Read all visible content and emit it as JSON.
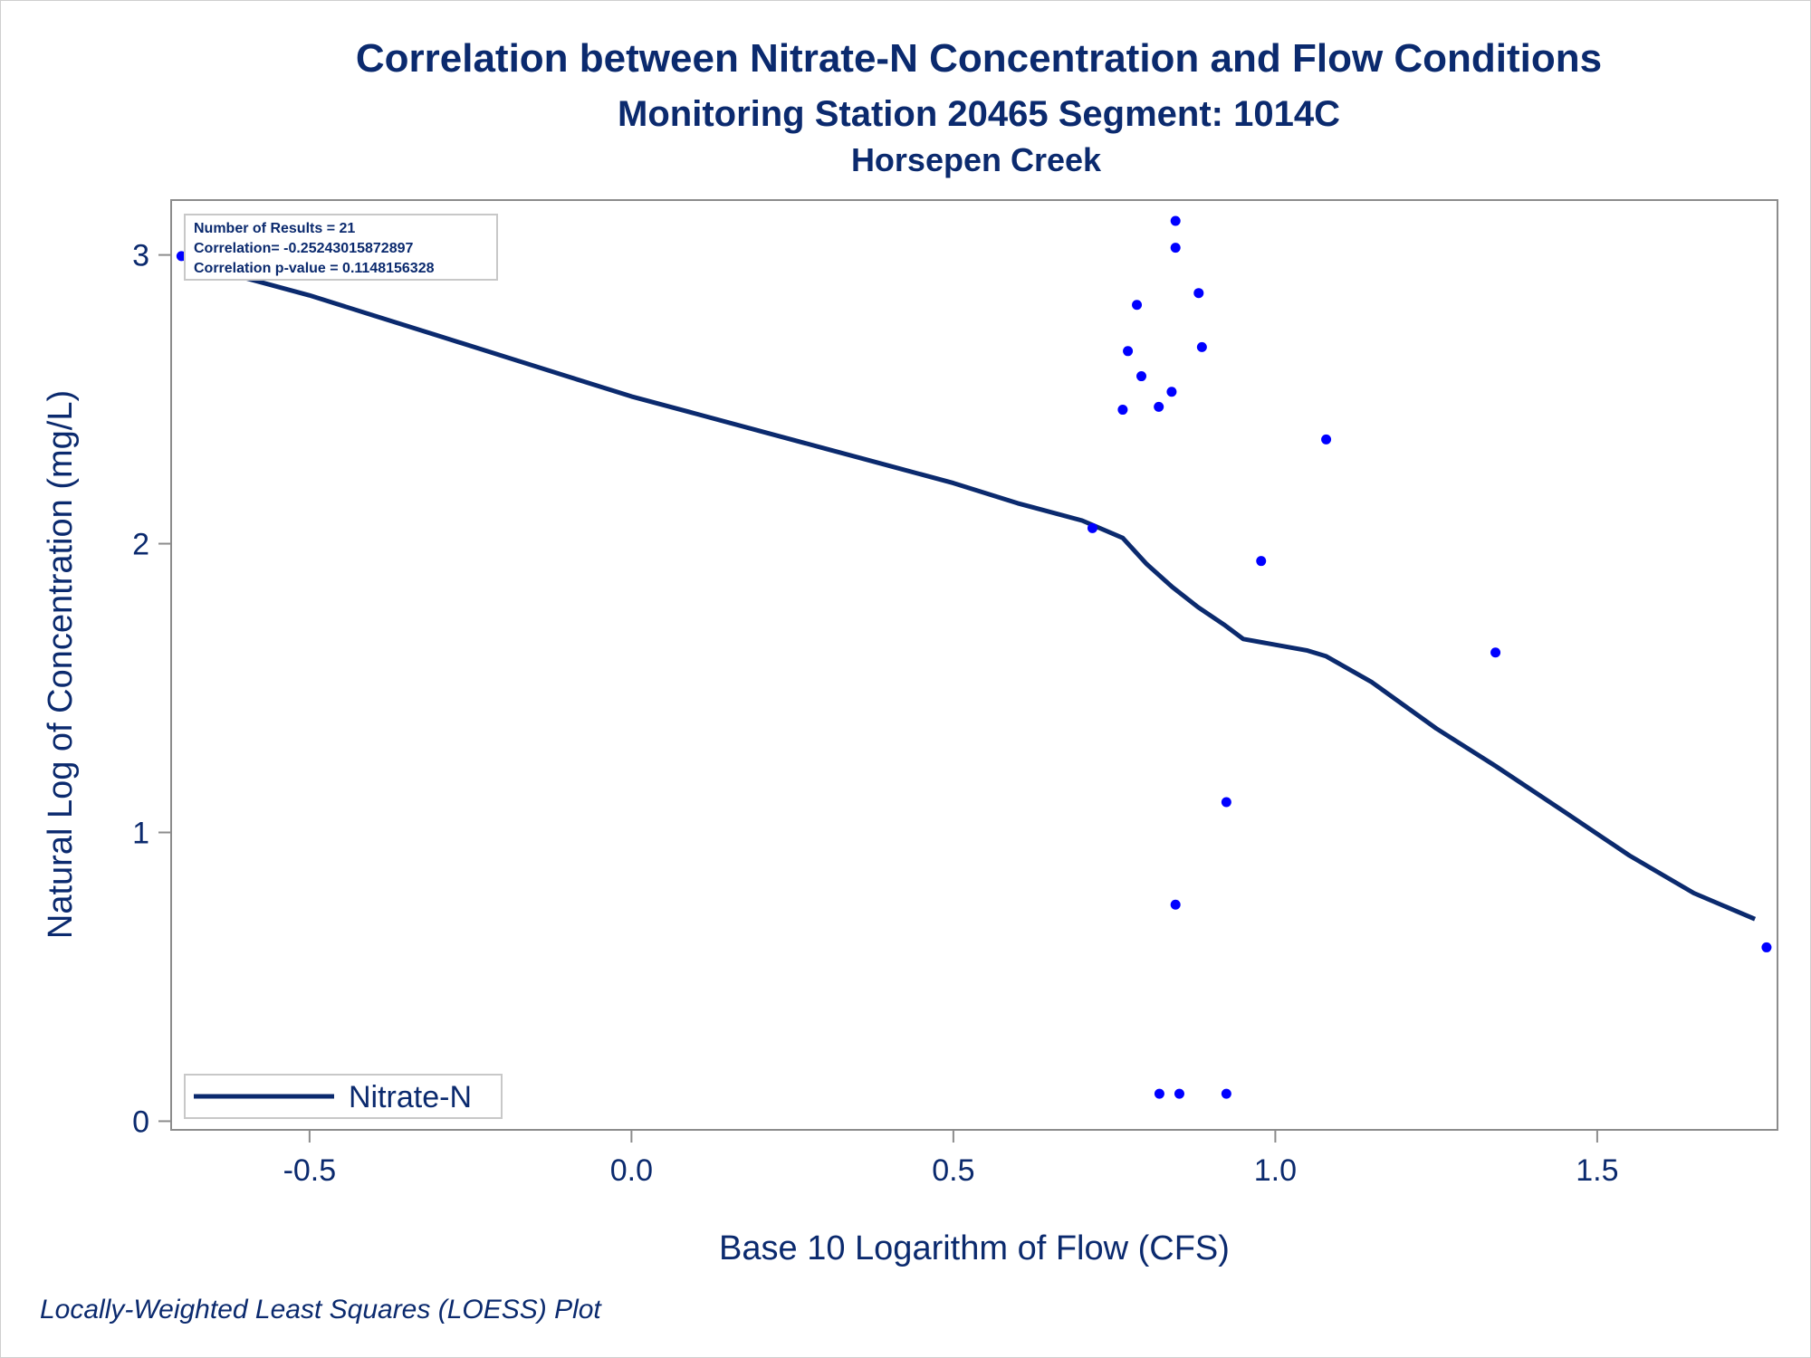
{
  "chart_data": {
    "type": "scatter",
    "title": "Correlation between Nitrate-N Concentration and Flow Conditions",
    "subtitle": "Monitoring Station 20465 Segment: 1014C",
    "subtitle2": "Horsepen Creek",
    "xlabel": "Base 10 Logarithm of Flow (CFS)",
    "ylabel": "Natural Log of Concentration (mg/L)",
    "footnote": "Locally-Weighted Least Squares (LOESS) Plot",
    "xlim": [
      -0.715,
      1.78
    ],
    "ylim": [
      -0.03,
      3.19
    ],
    "x_ticks": [
      -0.5,
      0.0,
      0.5,
      1.0,
      1.5
    ],
    "x_tick_labels": [
      "-0.5",
      "0.0",
      "0.5",
      "1.0",
      "1.5"
    ],
    "y_ticks": [
      0,
      1,
      2,
      3
    ],
    "y_tick_labels": [
      "0",
      "1",
      "2",
      "3"
    ],
    "grid": false,
    "legend": {
      "position": "bottom-left",
      "entries": [
        "Nitrate-N"
      ]
    },
    "stats_box": {
      "position": "top-left",
      "lines": [
        "Number of Results = 21",
        "Correlation= -0.25243015872897",
        "Correlation p-value = 0.1148156328"
      ]
    },
    "colors": {
      "points": "#0000ff",
      "line": "#0b2a6e",
      "text": "#0b2a6e",
      "axis": "#8c8c8c"
    },
    "points": [
      {
        "x": -0.699,
        "y": 2.996
      },
      {
        "x": 0.716,
        "y": 2.054
      },
      {
        "x": 0.763,
        "y": 2.464
      },
      {
        "x": 0.771,
        "y": 2.667
      },
      {
        "x": 0.785,
        "y": 2.827
      },
      {
        "x": 0.792,
        "y": 2.58
      },
      {
        "x": 0.819,
        "y": 2.474
      },
      {
        "x": 0.82,
        "y": 0.095
      },
      {
        "x": 0.839,
        "y": 2.526
      },
      {
        "x": 0.845,
        "y": 3.118
      },
      {
        "x": 0.845,
        "y": 3.025
      },
      {
        "x": 0.845,
        "y": 0.75
      },
      {
        "x": 0.851,
        "y": 0.095
      },
      {
        "x": 0.881,
        "y": 2.868
      },
      {
        "x": 0.886,
        "y": 2.681
      },
      {
        "x": 0.924,
        "y": 1.105
      },
      {
        "x": 0.924,
        "y": 0.095
      },
      {
        "x": 0.978,
        "y": 1.94
      },
      {
        "x": 1.079,
        "y": 2.361
      },
      {
        "x": 1.342,
        "y": 1.623
      },
      {
        "x": 1.763,
        "y": 0.602
      }
    ],
    "series": [
      {
        "name": "Nitrate-N",
        "type": "line",
        "x": [
          -0.699,
          -0.6,
          -0.5,
          -0.4,
          -0.3,
          -0.2,
          -0.1,
          0.0,
          0.1,
          0.2,
          0.3,
          0.4,
          0.5,
          0.6,
          0.7,
          0.763,
          0.8,
          0.84,
          0.88,
          0.92,
          0.95,
          1.0,
          1.05,
          1.079,
          1.15,
          1.25,
          1.342,
          1.45,
          1.55,
          1.65,
          1.745
        ],
        "y": [
          2.99,
          2.92,
          2.86,
          2.79,
          2.72,
          2.65,
          2.58,
          2.51,
          2.45,
          2.39,
          2.33,
          2.27,
          2.21,
          2.14,
          2.08,
          2.02,
          1.93,
          1.85,
          1.78,
          1.72,
          1.67,
          1.65,
          1.63,
          1.61,
          1.52,
          1.36,
          1.23,
          1.07,
          0.92,
          0.79,
          0.7
        ]
      }
    ]
  }
}
